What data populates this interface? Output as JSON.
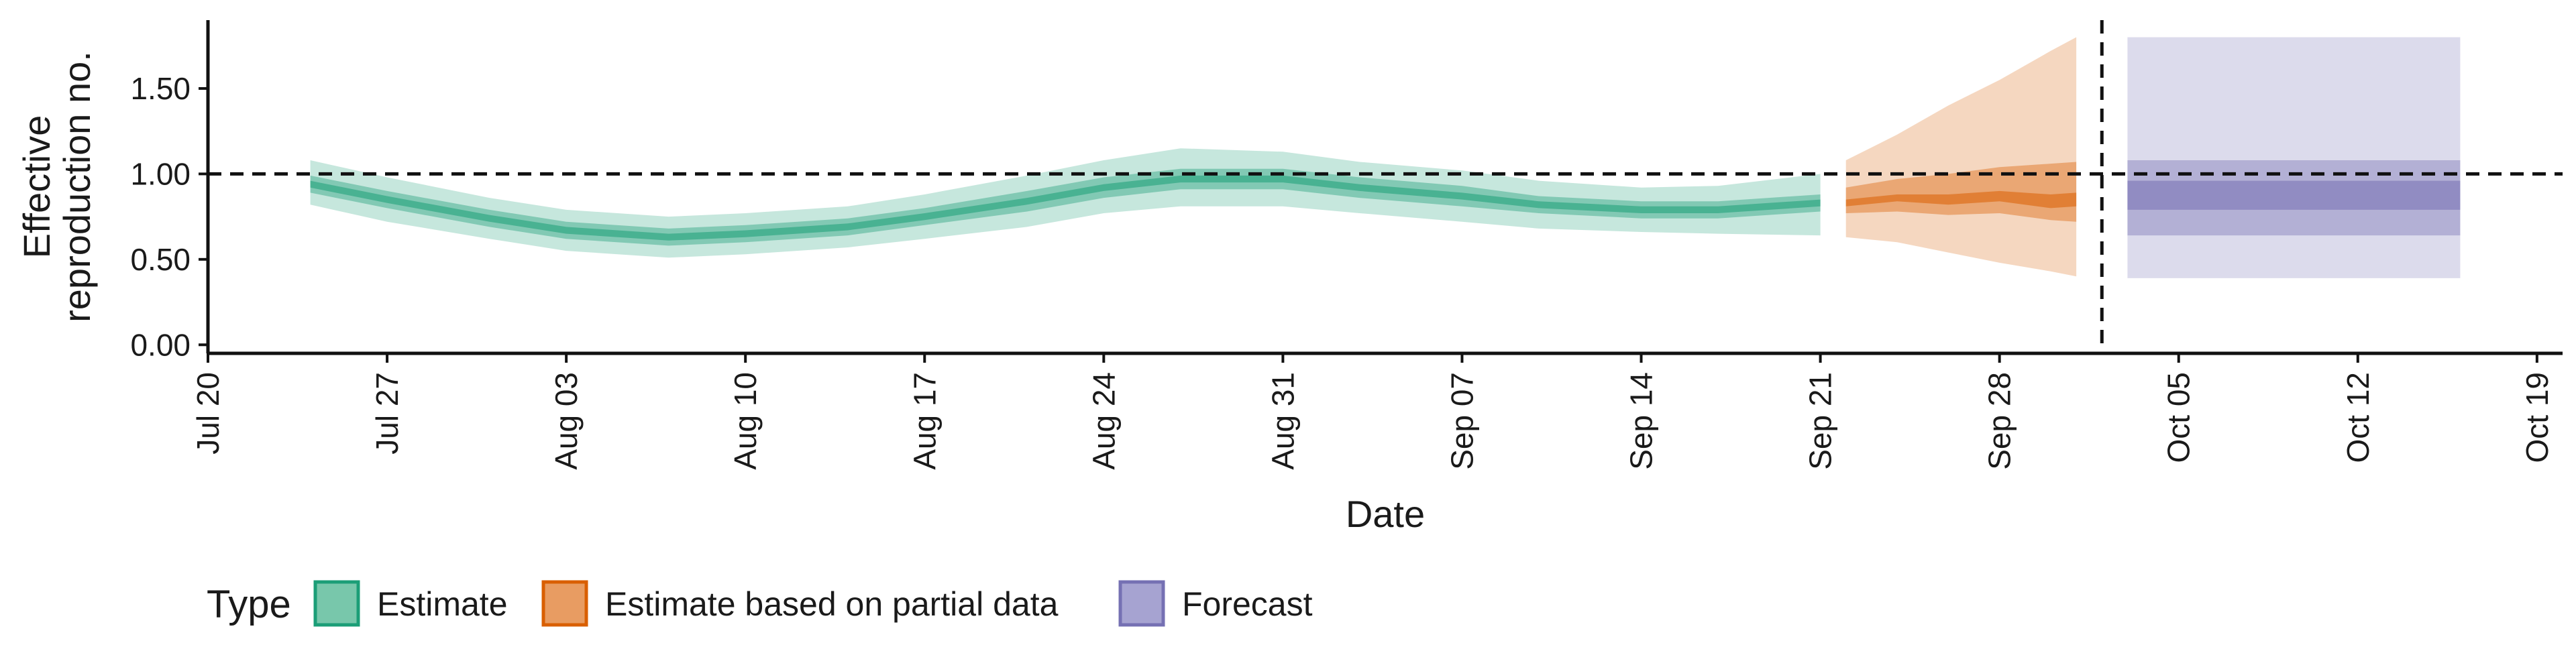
{
  "chart_data": {
    "type": "area",
    "xlabel": "Date",
    "ylabel_lines": [
      "Effective",
      "reproduction no."
    ],
    "xlim": [
      "2020-07-20",
      "2020-10-20"
    ],
    "ylim": [
      -0.05,
      1.9
    ],
    "x_ticks": [
      "2020-07-20",
      "2020-07-27",
      "2020-08-03",
      "2020-08-10",
      "2020-08-17",
      "2020-08-24",
      "2020-08-31",
      "2020-09-07",
      "2020-09-14",
      "2020-09-21",
      "2020-09-28",
      "2020-10-05",
      "2020-10-12",
      "2020-10-19"
    ],
    "x_tick_labels": [
      "Jul 20",
      "Jul 27",
      "Aug 03",
      "Aug 10",
      "Aug 17",
      "Aug 24",
      "Aug 31",
      "Sep 07",
      "Sep 14",
      "Sep 21",
      "Sep 28",
      "Oct 05",
      "Oct 12",
      "Oct 19"
    ],
    "y_ticks": [
      0,
      0.5,
      1.0,
      1.5
    ],
    "y_tick_labels": [
      "0.00",
      "0.50",
      "1.00",
      "1.50"
    ],
    "reference_lines": {
      "horizontal_y": 1.0,
      "vertical_x": "2020-10-02"
    },
    "legend": {
      "title": "Type",
      "position": "bottom-left",
      "items": [
        {
          "label": "Estimate",
          "fill": "#78c7ab",
          "border": "#1b9e77"
        },
        {
          "label": "Estimate based on partial data",
          "fill": "#e89c62",
          "border": "#d95f02"
        },
        {
          "label": "Forecast",
          "fill": "#a6a3d1",
          "border": "#7570b3"
        }
      ]
    },
    "series": [
      {
        "name": "Estimate",
        "color": "#1b9e77",
        "x": [
          "2020-07-24",
          "2020-07-27",
          "2020-07-31",
          "2020-08-03",
          "2020-08-07",
          "2020-08-10",
          "2020-08-14",
          "2020-08-17",
          "2020-08-21",
          "2020-08-24",
          "2020-08-27",
          "2020-08-31",
          "2020-09-03",
          "2020-09-07",
          "2020-09-10",
          "2020-09-14",
          "2020-09-17",
          "2020-09-21"
        ],
        "median": [
          0.94,
          0.85,
          0.74,
          0.67,
          0.63,
          0.65,
          0.69,
          0.75,
          0.84,
          0.92,
          0.97,
          0.97,
          0.92,
          0.87,
          0.82,
          0.79,
          0.79,
          0.83
        ],
        "ci20": [
          [
            0.92,
            0.96
          ],
          [
            0.83,
            0.87
          ],
          [
            0.72,
            0.76
          ],
          [
            0.65,
            0.69
          ],
          [
            0.61,
            0.65
          ],
          [
            0.63,
            0.67
          ],
          [
            0.67,
            0.71
          ],
          [
            0.73,
            0.77
          ],
          [
            0.82,
            0.86
          ],
          [
            0.9,
            0.94
          ],
          [
            0.95,
            0.99
          ],
          [
            0.95,
            0.99
          ],
          [
            0.9,
            0.94
          ],
          [
            0.85,
            0.89
          ],
          [
            0.8,
            0.84
          ],
          [
            0.77,
            0.81
          ],
          [
            0.77,
            0.81
          ],
          [
            0.81,
            0.85
          ]
        ],
        "ci50": [
          [
            0.89,
            0.99
          ],
          [
            0.8,
            0.9
          ],
          [
            0.69,
            0.79
          ],
          [
            0.62,
            0.72
          ],
          [
            0.58,
            0.68
          ],
          [
            0.6,
            0.7
          ],
          [
            0.64,
            0.74
          ],
          [
            0.7,
            0.8
          ],
          [
            0.78,
            0.9
          ],
          [
            0.86,
            0.98
          ],
          [
            0.91,
            1.03
          ],
          [
            0.91,
            1.03
          ],
          [
            0.86,
            0.98
          ],
          [
            0.81,
            0.93
          ],
          [
            0.77,
            0.87
          ],
          [
            0.74,
            0.84
          ],
          [
            0.74,
            0.84
          ],
          [
            0.78,
            0.88
          ]
        ],
        "ci90": [
          [
            0.82,
            1.08
          ],
          [
            0.72,
            0.98
          ],
          [
            0.62,
            0.86
          ],
          [
            0.55,
            0.79
          ],
          [
            0.51,
            0.75
          ],
          [
            0.53,
            0.77
          ],
          [
            0.57,
            0.81
          ],
          [
            0.62,
            0.88
          ],
          [
            0.69,
            0.99
          ],
          [
            0.77,
            1.08
          ],
          [
            0.81,
            1.15
          ],
          [
            0.81,
            1.13
          ],
          [
            0.77,
            1.07
          ],
          [
            0.72,
            1.02
          ],
          [
            0.68,
            0.96
          ],
          [
            0.66,
            0.92
          ],
          [
            0.65,
            0.93
          ],
          [
            0.64,
            1.0
          ]
        ]
      },
      {
        "name": "Estimate based on partial data",
        "color": "#d95f02",
        "x": [
          "2020-09-22",
          "2020-09-24",
          "2020-09-26",
          "2020-09-28",
          "2020-09-30",
          "2020-10-01"
        ],
        "median": [
          0.83,
          0.86,
          0.85,
          0.87,
          0.84,
          0.85
        ],
        "ci20": [
          [
            0.81,
            0.85
          ],
          [
            0.84,
            0.88
          ],
          [
            0.82,
            0.88
          ],
          [
            0.84,
            0.9
          ],
          [
            0.8,
            0.88
          ],
          [
            0.81,
            0.89
          ]
        ],
        "ci50": [
          [
            0.77,
            0.92
          ],
          [
            0.78,
            0.97
          ],
          [
            0.76,
            1.0
          ],
          [
            0.77,
            1.04
          ],
          [
            0.73,
            1.06
          ],
          [
            0.72,
            1.07
          ]
        ],
        "ci90": [
          [
            0.63,
            1.08
          ],
          [
            0.6,
            1.23
          ],
          [
            0.54,
            1.4
          ],
          [
            0.48,
            1.55
          ],
          [
            0.43,
            1.72
          ],
          [
            0.4,
            1.8
          ]
        ]
      },
      {
        "name": "Forecast",
        "color": "#7570b3",
        "x": [
          "2020-10-03",
          "2020-10-16"
        ],
        "median": [
          0.88,
          0.88
        ],
        "ci20": [
          [
            0.79,
            0.96
          ],
          [
            0.79,
            0.96
          ]
        ],
        "ci50": [
          [
            0.64,
            1.08
          ],
          [
            0.64,
            1.08
          ]
        ],
        "ci90": [
          [
            0.39,
            1.8
          ],
          [
            0.39,
            1.8
          ]
        ]
      }
    ]
  }
}
